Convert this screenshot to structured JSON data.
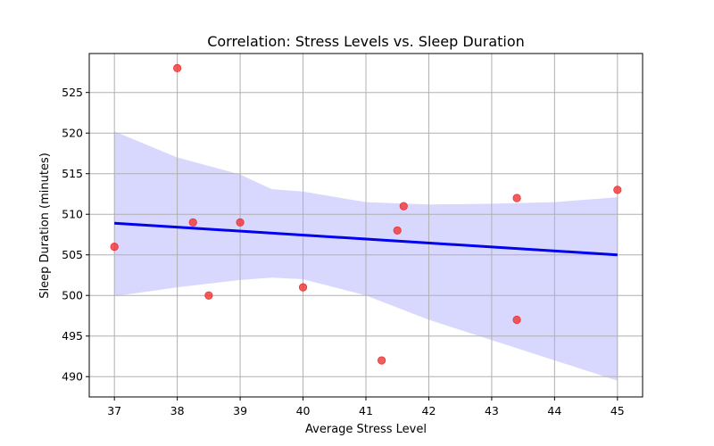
{
  "chart_data": {
    "type": "scatter",
    "title": "Correlation: Stress Levels vs. Sleep Duration",
    "xlabel": "Average Stress Level",
    "ylabel": "Sleep Duration (minutes)",
    "xlim": [
      36.6,
      45.4
    ],
    "ylim": [
      487.5,
      529.8
    ],
    "xticks": [
      37,
      38,
      39,
      40,
      41,
      42,
      43,
      44,
      45
    ],
    "yticks": [
      490,
      495,
      500,
      505,
      510,
      515,
      520,
      525
    ],
    "grid": true,
    "points": [
      {
        "x": 37.0,
        "y": 506
      },
      {
        "x": 38.0,
        "y": 528
      },
      {
        "x": 38.25,
        "y": 509
      },
      {
        "x": 38.5,
        "y": 500
      },
      {
        "x": 39.0,
        "y": 509
      },
      {
        "x": 40.0,
        "y": 501
      },
      {
        "x": 41.25,
        "y": 492
      },
      {
        "x": 41.5,
        "y": 508
      },
      {
        "x": 41.6,
        "y": 511
      },
      {
        "x": 43.4,
        "y": 512
      },
      {
        "x": 43.4,
        "y": 497
      },
      {
        "x": 45.0,
        "y": 513
      }
    ],
    "regression": {
      "x": [
        37,
        45
      ],
      "y": [
        508.9,
        505.0
      ]
    },
    "confidence_band": {
      "x": [
        37,
        38,
        39,
        39.5,
        40,
        41,
        42,
        43,
        44,
        45
      ],
      "lower": [
        499.9,
        501.0,
        501.9,
        502.2,
        502.0,
        500.0,
        497.0,
        494.5,
        492.0,
        489.5
      ],
      "upper": [
        520.2,
        517.0,
        514.9,
        513.1,
        512.8,
        511.5,
        511.2,
        511.3,
        511.5,
        512.1
      ]
    },
    "colors": {
      "points": "#f03030",
      "regression": "#0000ee",
      "band": "#d8d8ff",
      "grid": "#b0b0b0"
    }
  }
}
